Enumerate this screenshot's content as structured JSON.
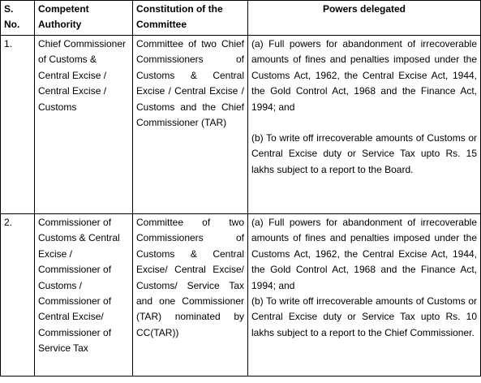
{
  "table": {
    "header": [
      "S. No.",
      "Competent Authority",
      "Constitution of the Committee",
      "Powers delegated"
    ],
    "rows": [
      [
        "1.",
        "Chief Commissioner of Customs & Central Excise / Central Excise / Customs",
        "Committee of two Chief Commissioners of Customs & Central Excise / Central Excise / Customs and the Chief Commissioner (TAR)",
        [
          "(a) Full powers for abandonment of irrecoverable amounts of fines and penalties imposed under the Customs Act, 1962, the Central Excise Act, 1944, the Gold Control Act, 1968 and the Finance Act, 1994; and",
          "(b) To write off irrecoverable amounts of Customs or Central Excise duty or Service Tax upto Rs. 15 lakhs subject to a report to the Board."
        ]
      ],
      [
        "2.",
        "Commissioner of Customs & Central Excise / Commissioner of Customs / Commissioner of Central Excise/ Commissioner of Service Tax",
        "Committee of two Commissioners of Customs & Central Excise/ Central Excise/ Customs/ Service Tax and one Commissioner (TAR) nominated by CC(TAR))",
        [
          "(a) Full powers for abandonment of irrecoverable amounts of fines and penalties imposed under the Customs Act, 1962, the Central Excise Act, 1944, the Gold Control Act, 1968 and the Finance Act, 1994; and",
          "(b) To write off irrecoverable amounts of Customs or Central Excise duty or Service Tax upto Rs. 10 lakhs subject to a report to the Chief Commissioner."
        ]
      ]
    ]
  }
}
